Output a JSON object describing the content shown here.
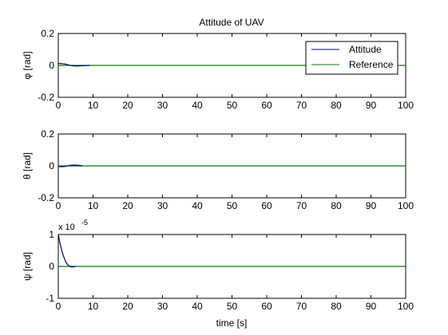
{
  "chart_data": {
    "title": "Attitude of UAV",
    "type": "line",
    "legend": {
      "placement": "top-right",
      "entries": [
        "Attitude",
        "Reference"
      ]
    },
    "xlabel": "time [s]",
    "xlim": [
      0,
      100
    ],
    "xticks": [
      0,
      10,
      20,
      30,
      40,
      50,
      60,
      70,
      80,
      90,
      100
    ],
    "colors": {
      "attitude": "#00007f",
      "reference": "#007f00",
      "axes": "#000000"
    },
    "subplots": [
      {
        "ylabel": "φ [rad]",
        "ylim": [
          -0.2,
          0.2
        ],
        "yticks": [
          -0.2,
          0,
          0.2
        ],
        "ytick_labels": [
          "-0.2",
          "0",
          "0.2"
        ],
        "exponent_label": "",
        "series": [
          {
            "name": "Attitude",
            "x": [
              0,
              1,
              2,
              3,
              4,
              5,
              6,
              7,
              8,
              9
            ],
            "y": [
              0.012,
              0.011,
              0.008,
              0.003,
              -0.002,
              -0.004,
              -0.003,
              -0.002,
              -0.001,
              0
            ]
          },
          {
            "name": "Reference",
            "x": [
              0,
              100
            ],
            "y": [
              0,
              0
            ]
          }
        ]
      },
      {
        "ylabel": "θ [rad]",
        "ylim": [
          -0.2,
          0.2
        ],
        "yticks": [
          -0.2,
          0,
          0.2
        ],
        "ytick_labels": [
          "-0.2",
          "0",
          "0.2"
        ],
        "exponent_label": "",
        "series": [
          {
            "name": "Attitude",
            "x": [
              0,
              1,
              2,
              3,
              4,
              5,
              6,
              7
            ],
            "y": [
              -0.004,
              -0.005,
              -0.003,
              0.002,
              0.005,
              0.005,
              0.003,
              0.001
            ]
          },
          {
            "name": "Reference",
            "x": [
              0,
              100
            ],
            "y": [
              0,
              0
            ]
          }
        ]
      },
      {
        "ylabel": "ψ [rad]",
        "ylim": [
          -1,
          1
        ],
        "yticks": [
          -1,
          0,
          1
        ],
        "ytick_labels": [
          "-1",
          "0",
          "1"
        ],
        "exponent_label": "x 10",
        "exponent_power": "-5",
        "series": [
          {
            "name": "Attitude",
            "x": [
              0,
              0.5,
              1,
              1.5,
              2,
              2.5,
              3,
              3.5,
              4,
              4.5,
              5
            ],
            "y": [
              1.0,
              0.72,
              0.5,
              0.32,
              0.18,
              0.08,
              0.02,
              -0.01,
              -0.02,
              -0.01,
              0
            ]
          },
          {
            "name": "Reference",
            "x": [
              0,
              100
            ],
            "y": [
              0,
              0
            ]
          }
        ]
      }
    ]
  }
}
